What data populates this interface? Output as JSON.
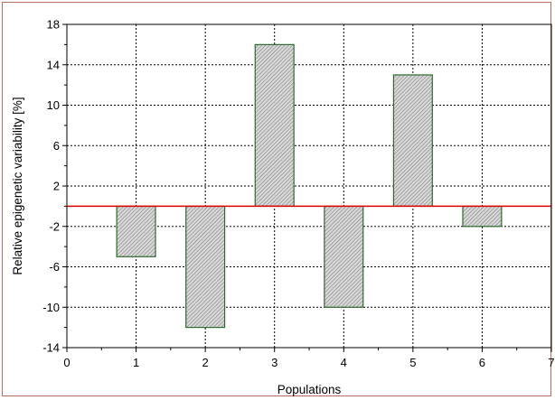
{
  "chart_data": {
    "type": "bar",
    "categories": [
      1,
      2,
      3,
      4,
      5,
      6
    ],
    "values": [
      -5,
      -12,
      16,
      -10,
      13,
      -2
    ],
    "title": "",
    "xlabel": "Populations",
    "ylabel": "Relative epigenetic variability [%]",
    "xlim": [
      0,
      7
    ],
    "ylim": [
      -14,
      18
    ],
    "xticks": [
      0,
      1,
      2,
      3,
      4,
      5,
      6,
      7
    ],
    "yticks": [
      -14,
      -10,
      -6,
      -2,
      2,
      6,
      10,
      14,
      18
    ],
    "reference_line": 0,
    "grid": true,
    "legend": "none",
    "colors": {
      "bar_fill": "#d8d8d8",
      "bar_hatch": "#7a7a7a",
      "bar_edge": "#2e6b2e",
      "reference_line": "#dd0000",
      "grid": "#000000",
      "frame_border": "#b0705a"
    }
  }
}
